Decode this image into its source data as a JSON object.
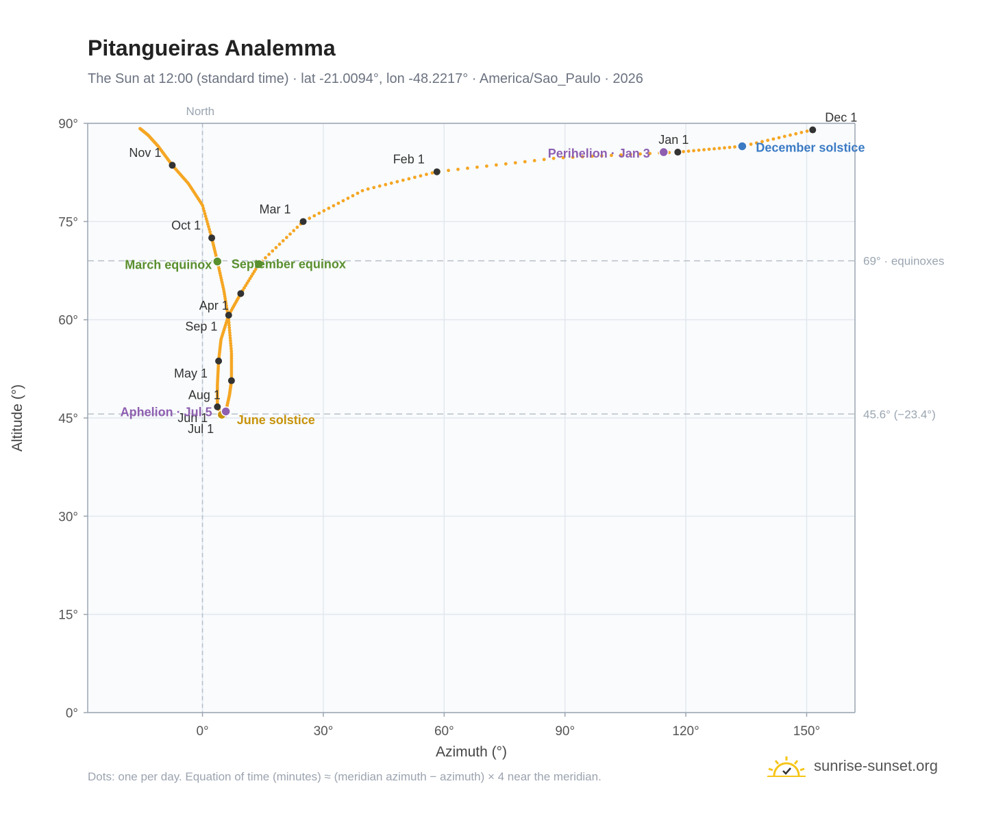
{
  "header": {
    "title": "Pitangueiras Analemma",
    "subtitle": "The Sun at 12:00 (standard time) · lat -21.0094°, lon -48.2217° · America/Sao_Paulo · 2026"
  },
  "footer": {
    "note": "Dots: one per day. Equation of time (minutes) ≈ (meridian azimuth − azimuth) × 4 near the meridian.",
    "brand": "sunrise-sunset.org"
  },
  "colors": {
    "path": "#f5a623",
    "month_marker": "#333333",
    "equinox": "#5a8f2e",
    "solstice_june": "#c8930a",
    "solstice_december": "#3b7bc4",
    "apsis": "#8e5fb0",
    "plot_bg": "#f9fbfd",
    "grid": "#e3e8ee",
    "axis": "#9aa5b1"
  },
  "chart_data": {
    "type": "scatter",
    "title": "Pitangueiras Analemma",
    "xlabel": "Azimuth (°)",
    "ylabel": "Altitude (°)",
    "xlim": [
      -28.5,
      162
    ],
    "ylim": [
      0,
      90
    ],
    "x_ticks": [
      0,
      30,
      60,
      90,
      120,
      150
    ],
    "y_ticks": [
      0,
      15,
      30,
      45,
      60,
      75,
      90
    ],
    "x_tick_labels": [
      "0°",
      "30°",
      "60°",
      "90°",
      "120°",
      "150°"
    ],
    "y_tick_labels": [
      "0°",
      "15°",
      "30°",
      "45°",
      "60°",
      "75°",
      "90°"
    ],
    "grid": true,
    "north_label": "North",
    "reference_lines": [
      {
        "altitude": 69,
        "label": "69° · equinoxes"
      },
      {
        "altitude": 45.6,
        "label": "45.6° (−23.4°)"
      }
    ],
    "month_markers": [
      {
        "label": "Jan 1",
        "az": 118,
        "alt": 85.6
      },
      {
        "label": "Feb 1",
        "az": 58.2,
        "alt": 82.6
      },
      {
        "label": "Mar 1",
        "az": 25,
        "alt": 75
      },
      {
        "label": "Apr 1",
        "az": 6.5,
        "alt": 60.7
      },
      {
        "label": "May 1",
        "az": 4,
        "alt": 53.7
      },
      {
        "label": "Jun 1",
        "az": 3.7,
        "alt": 46.7
      },
      {
        "label": "Jul 1",
        "az": 5.2,
        "alt": 45.4
      },
      {
        "label": "Aug 1",
        "az": 7.2,
        "alt": 50.7
      },
      {
        "label": "Sep 1",
        "az": 9.5,
        "alt": 64
      },
      {
        "label": "Oct 1",
        "az": 2.3,
        "alt": 72.5
      },
      {
        "label": "Nov 1",
        "az": -7.5,
        "alt": 83.6
      },
      {
        "label": "Dec 1",
        "az": 151.5,
        "alt": 89
      }
    ],
    "events": [
      {
        "label": "March equinox",
        "az": 3.7,
        "alt": 68.9,
        "color_key": "equinox"
      },
      {
        "label": "September equinox",
        "az": 14,
        "alt": 68.5,
        "color_key": "equinox"
      },
      {
        "label": "June solstice",
        "az": 4.8,
        "alt": 45.5,
        "color_key": "solstice_june"
      },
      {
        "label": "December solstice",
        "az": 134,
        "alt": 86.5,
        "color_key": "solstice_december"
      },
      {
        "label": "Perihelion · Jan 3",
        "az": 114.5,
        "alt": 85.6,
        "color_key": "apsis"
      },
      {
        "label": "Aphelion · Jul 5",
        "az": 5.8,
        "alt": 46,
        "color_key": "apsis"
      }
    ],
    "series": [
      {
        "type": "line",
        "points": [
          [
            151.5,
            89
          ],
          [
            134,
            86.5
          ],
          [
            118,
            85.6
          ],
          [
            88,
            84.7
          ],
          [
            58.2,
            82.6
          ],
          [
            40,
            79.8
          ],
          [
            25,
            75
          ],
          [
            14,
            68.5
          ],
          [
            9.5,
            64
          ],
          [
            6.5,
            60.7
          ],
          [
            4.6,
            57
          ],
          [
            4,
            53.7
          ],
          [
            3.7,
            50
          ],
          [
            3.7,
            46.7
          ],
          [
            4.8,
            45.5
          ],
          [
            5.2,
            45.4
          ],
          [
            5.8,
            46
          ],
          [
            6.7,
            48.5
          ],
          [
            7.2,
            50.7
          ],
          [
            7.2,
            55
          ],
          [
            6.5,
            60
          ],
          [
            5.3,
            64.5
          ],
          [
            3.7,
            68.9
          ],
          [
            2.3,
            72.5
          ],
          [
            0,
            77.5
          ],
          [
            -3.5,
            80.8
          ],
          [
            -7.5,
            83.6
          ],
          [
            -11,
            86.5
          ],
          [
            -13.5,
            88.2
          ],
          [
            -15.5,
            89.2
          ]
        ]
      }
    ]
  }
}
